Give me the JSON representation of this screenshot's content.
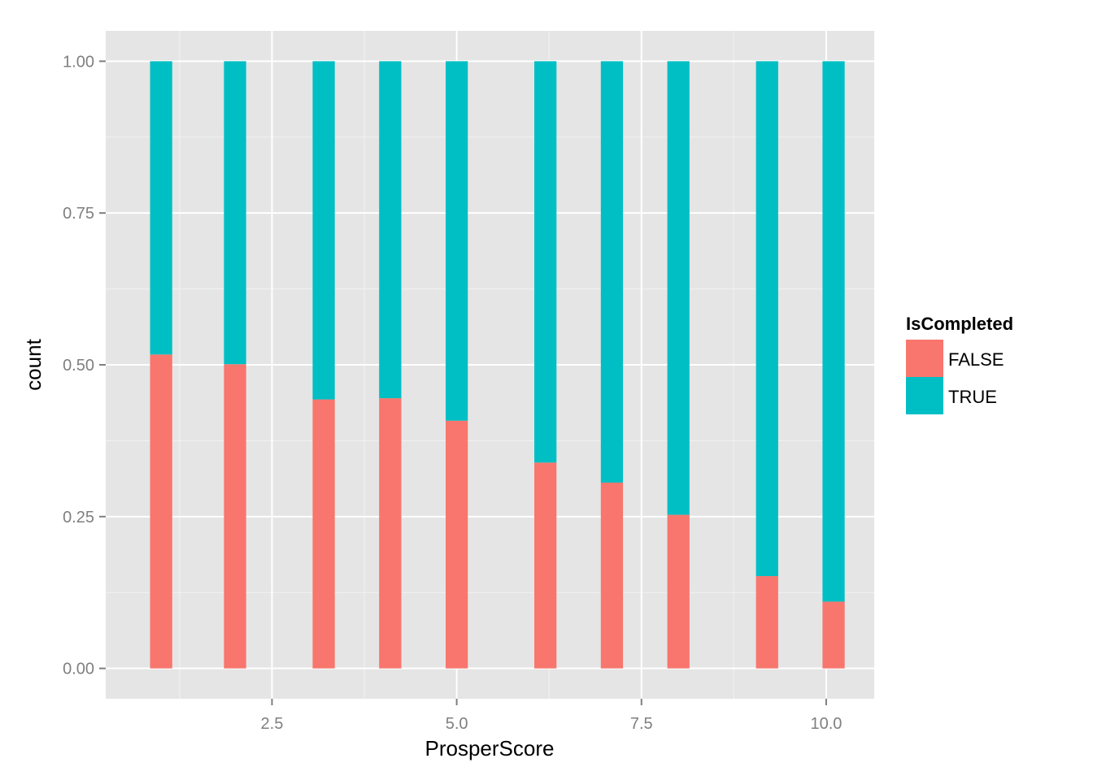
{
  "chart_data": {
    "type": "bar",
    "stacked": true,
    "title": "",
    "xlabel": "ProsperScore",
    "ylabel": "count",
    "x": [
      1,
      2,
      3.2,
      4.1,
      5,
      6.2,
      7.1,
      8,
      9.2,
      10.1
    ],
    "xlim": [
      0.25,
      10.65
    ],
    "ylim": [
      -0.05,
      1.05
    ],
    "x_ticks": [
      2.5,
      5.0,
      7.5,
      10.0
    ],
    "x_tick_labels": [
      "2.5",
      "5.0",
      "7.5",
      "10.0"
    ],
    "y_ticks": [
      0,
      0.25,
      0.5,
      0.75,
      1.0
    ],
    "y_tick_labels": [
      "0.00",
      "0.25",
      "0.50",
      "0.75",
      "1.00"
    ],
    "bar_width_units": 0.3,
    "grid": true,
    "legend": {
      "title": "IsCompleted",
      "position": "right"
    },
    "series": [
      {
        "name": "FALSE",
        "color": "#F8766D",
        "values": [
          0.517,
          0.501,
          0.443,
          0.445,
          0.408,
          0.339,
          0.306,
          0.253,
          0.152,
          0.11
        ]
      },
      {
        "name": "TRUE",
        "color": "#00BFC4",
        "values": [
          0.483,
          0.499,
          0.557,
          0.555,
          0.592,
          0.661,
          0.694,
          0.747,
          0.848,
          0.89
        ]
      }
    ],
    "colors": {
      "panel": "#E5E5E5",
      "grid_major": "#FFFFFF",
      "grid_minor": "#F2F2F2",
      "tick_text": "#7F7F7F"
    }
  }
}
